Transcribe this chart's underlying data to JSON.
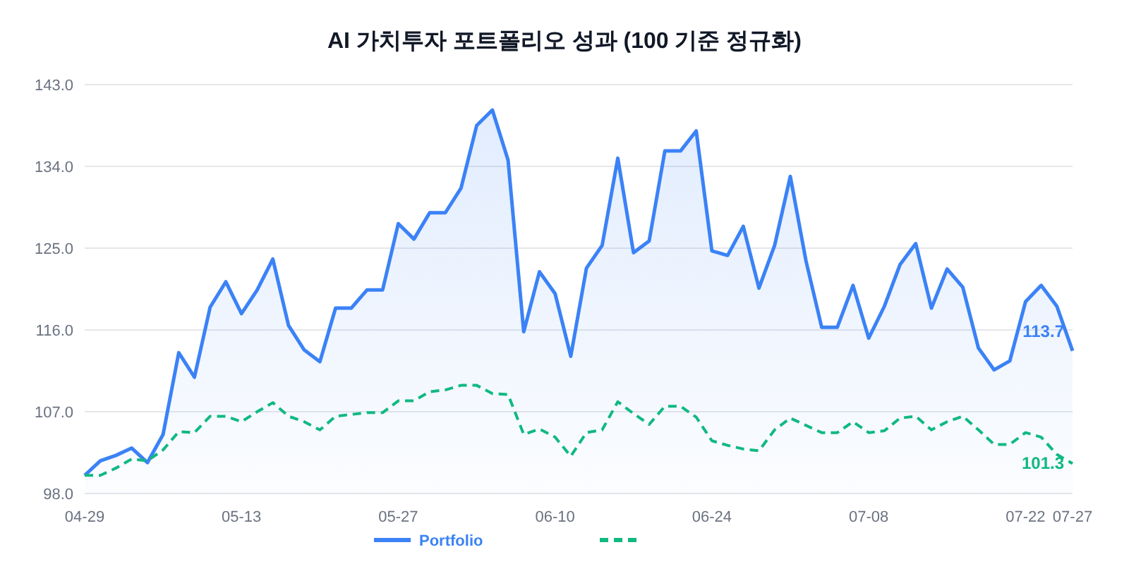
{
  "chart_data": {
    "type": "line",
    "title": "AI 가치투자 포트폴리오 성과 (100 기준 정규화)",
    "categories": [
      "04-29",
      null,
      null,
      null,
      null,
      null,
      null,
      null,
      null,
      null,
      "05-13",
      null,
      null,
      null,
      null,
      null,
      null,
      null,
      null,
      null,
      "05-27",
      null,
      null,
      null,
      null,
      null,
      null,
      null,
      null,
      null,
      "06-10",
      null,
      null,
      null,
      null,
      null,
      null,
      null,
      null,
      null,
      "06-24",
      null,
      null,
      null,
      null,
      null,
      null,
      null,
      null,
      null,
      "07-08",
      null,
      null,
      null,
      null,
      null,
      null,
      null,
      null,
      null,
      "07-22",
      null,
      null,
      "07-27"
    ],
    "series": [
      {
        "name": "Portfolio",
        "type": "area",
        "color": "#3b82f6",
        "line_style": "solid",
        "values": [
          100.0,
          101.6,
          102.2,
          103.0,
          101.4,
          104.5,
          113.5,
          110.8,
          118.5,
          121.3,
          117.8,
          120.4,
          123.8,
          116.5,
          113.8,
          112.5,
          118.4,
          118.4,
          120.4,
          120.4,
          127.7,
          126.0,
          128.9,
          128.9,
          131.6,
          138.5,
          140.2,
          134.7,
          115.8,
          122.4,
          120.0,
          113.1,
          122.8,
          125.3,
          134.9,
          124.5,
          125.8,
          135.7,
          135.7,
          137.9,
          124.7,
          124.2,
          127.4,
          120.6,
          125.3,
          132.9,
          123.6,
          116.3,
          116.3,
          120.9,
          115.1,
          118.6,
          123.2,
          125.5,
          118.4,
          122.7,
          120.7,
          114.0,
          111.6,
          112.6,
          119.1,
          120.9,
          118.6,
          113.7
        ],
        "value_labels": [
          null,
          null,
          null,
          null,
          null,
          null,
          null,
          null,
          null,
          null,
          null,
          null,
          null,
          null,
          null,
          null,
          null,
          null,
          null,
          null,
          null,
          null,
          null,
          null,
          null,
          null,
          null,
          null,
          null,
          null,
          null,
          null,
          null,
          null,
          null,
          null,
          null,
          null,
          null,
          null,
          null,
          null,
          null,
          null,
          null,
          null,
          null,
          null,
          null,
          null,
          null,
          null,
          null,
          null,
          null,
          null,
          null,
          null,
          null,
          null,
          null,
          null,
          null,
          "113.7"
        ]
      },
      {
        "color": "#10b981",
        "line_style": "dashed",
        "values": [
          100.0,
          100.0,
          100.8,
          101.8,
          101.6,
          102.8,
          104.8,
          104.7,
          106.5,
          106.5,
          105.9,
          107.0,
          108.0,
          106.5,
          105.9,
          105.0,
          106.5,
          106.7,
          106.9,
          106.9,
          108.2,
          108.2,
          109.2,
          109.4,
          109.9,
          109.9,
          109.0,
          108.9,
          104.5,
          105.1,
          104.2,
          102.1,
          104.7,
          105.0,
          108.1,
          106.8,
          105.6,
          107.6,
          107.6,
          106.4,
          103.8,
          103.3,
          102.9,
          102.7,
          105.0,
          106.3,
          105.5,
          104.7,
          104.7,
          105.9,
          104.7,
          104.9,
          106.3,
          106.5,
          105.0,
          105.9,
          106.5,
          105.0,
          103.4,
          103.4,
          104.7,
          104.2,
          102.3,
          101.3
        ],
        "value_labels": [
          null,
          null,
          null,
          null,
          null,
          null,
          null,
          null,
          null,
          null,
          null,
          null,
          null,
          null,
          null,
          null,
          null,
          null,
          null,
          null,
          null,
          null,
          null,
          null,
          null,
          null,
          null,
          null,
          null,
          null,
          null,
          null,
          null,
          null,
          null,
          null,
          null,
          null,
          null,
          null,
          null,
          null,
          null,
          null,
          null,
          null,
          null,
          null,
          null,
          null,
          null,
          null,
          null,
          null,
          null,
          null,
          null,
          null,
          null,
          null,
          null,
          null,
          null,
          "101.3"
        ]
      }
    ],
    "ylim": [
      98,
      143
    ],
    "yticks": [
      {
        "value": 98,
        "label": "98.0"
      },
      {
        "value": 107,
        "label": "107.0"
      },
      {
        "value": 116,
        "label": "116.0"
      },
      {
        "value": 125,
        "label": "125.0"
      },
      {
        "value": 134,
        "label": "134.0"
      },
      {
        "value": 143,
        "label": "143.0"
      }
    ],
    "grid": "y",
    "legend": "bottom",
    "marker": "none"
  }
}
